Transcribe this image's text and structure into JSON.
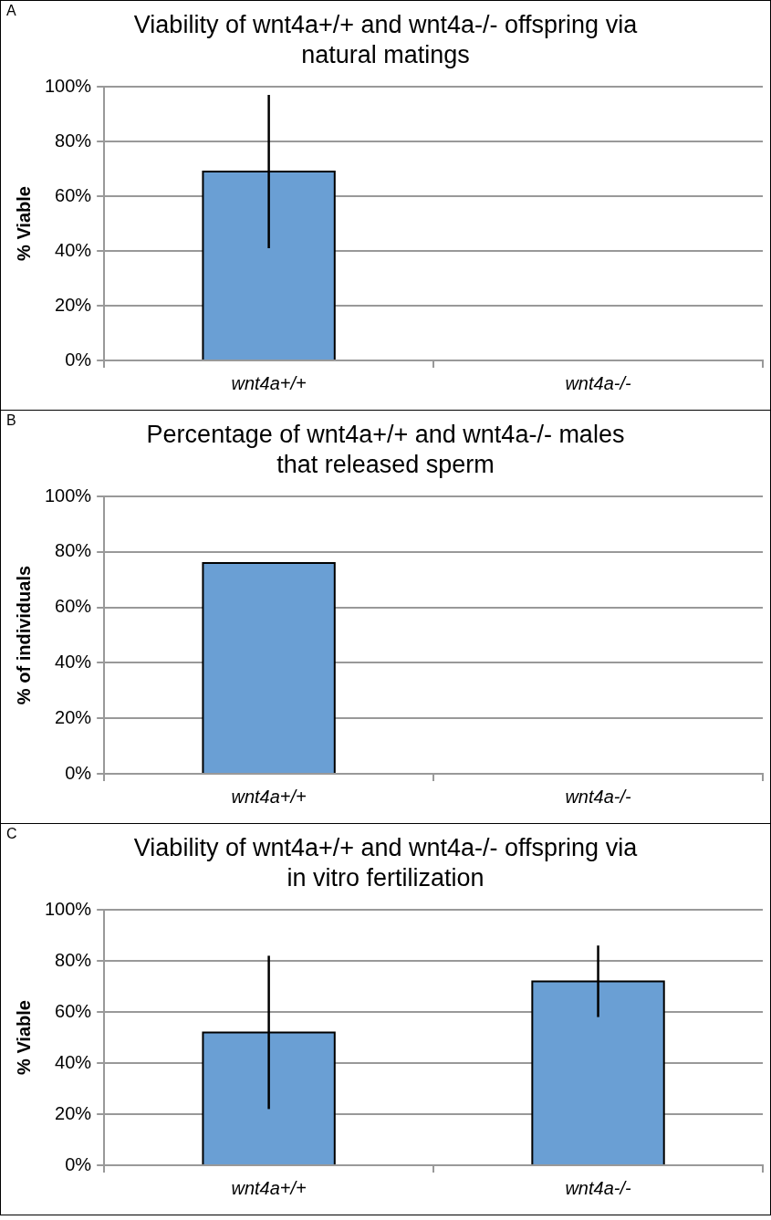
{
  "chart_data": [
    {
      "type": "bar",
      "title": "Viability of wnt4a+/+ and wnt4a-/- offspring via natural matings",
      "ylabel": "% Viable",
      "annotations": [
        "A"
      ],
      "categories": [
        "wnt4a+/+",
        "wnt4a-/-"
      ],
      "values": [
        69,
        0
      ],
      "errors": [
        28,
        null
      ],
      "color": "#6a9fd4",
      "ylim": [
        0,
        100
      ],
      "yticks": [
        {
          "value": 0,
          "label": "0%"
        },
        {
          "value": 20,
          "label": "20%"
        },
        {
          "value": 40,
          "label": "40%"
        },
        {
          "value": 60,
          "label": "60%"
        },
        {
          "value": 80,
          "label": "80%"
        },
        {
          "value": 100,
          "label": "100%"
        }
      ],
      "grid": "y"
    },
    {
      "type": "bar",
      "title": "Percentage of wnt4a+/+ and wnt4a-/- males that released sperm",
      "ylabel": "% of individuals",
      "annotations": [
        "B"
      ],
      "categories": [
        "wnt4a+/+",
        "wnt4a-/-"
      ],
      "values": [
        76,
        0
      ],
      "color": "#6a9fd4",
      "ylim": [
        0,
        100
      ],
      "yticks": [
        {
          "value": 0,
          "label": "0%"
        },
        {
          "value": 20,
          "label": "20%"
        },
        {
          "value": 40,
          "label": "40%"
        },
        {
          "value": 60,
          "label": "60%"
        },
        {
          "value": 80,
          "label": "80%"
        },
        {
          "value": 100,
          "label": "100%"
        }
      ],
      "grid": "y"
    },
    {
      "type": "bar",
      "title": "Viability of wnt4a+/+ and wnt4a-/- offspring via in vitro fertilization",
      "ylabel": "% Viable",
      "annotations": [
        "C"
      ],
      "categories": [
        "wnt4a+/+",
        "wnt4a-/-"
      ],
      "values": [
        52,
        72
      ],
      "errors": [
        30,
        14
      ],
      "color": "#6a9fd4",
      "ylim": [
        0,
        100
      ],
      "yticks": [
        {
          "value": 0,
          "label": "0%"
        },
        {
          "value": 20,
          "label": "20%"
        },
        {
          "value": 40,
          "label": "40%"
        },
        {
          "value": 60,
          "label": "60%"
        },
        {
          "value": 80,
          "label": "80%"
        },
        {
          "value": 100,
          "label": "100%"
        }
      ],
      "grid": "y"
    }
  ]
}
